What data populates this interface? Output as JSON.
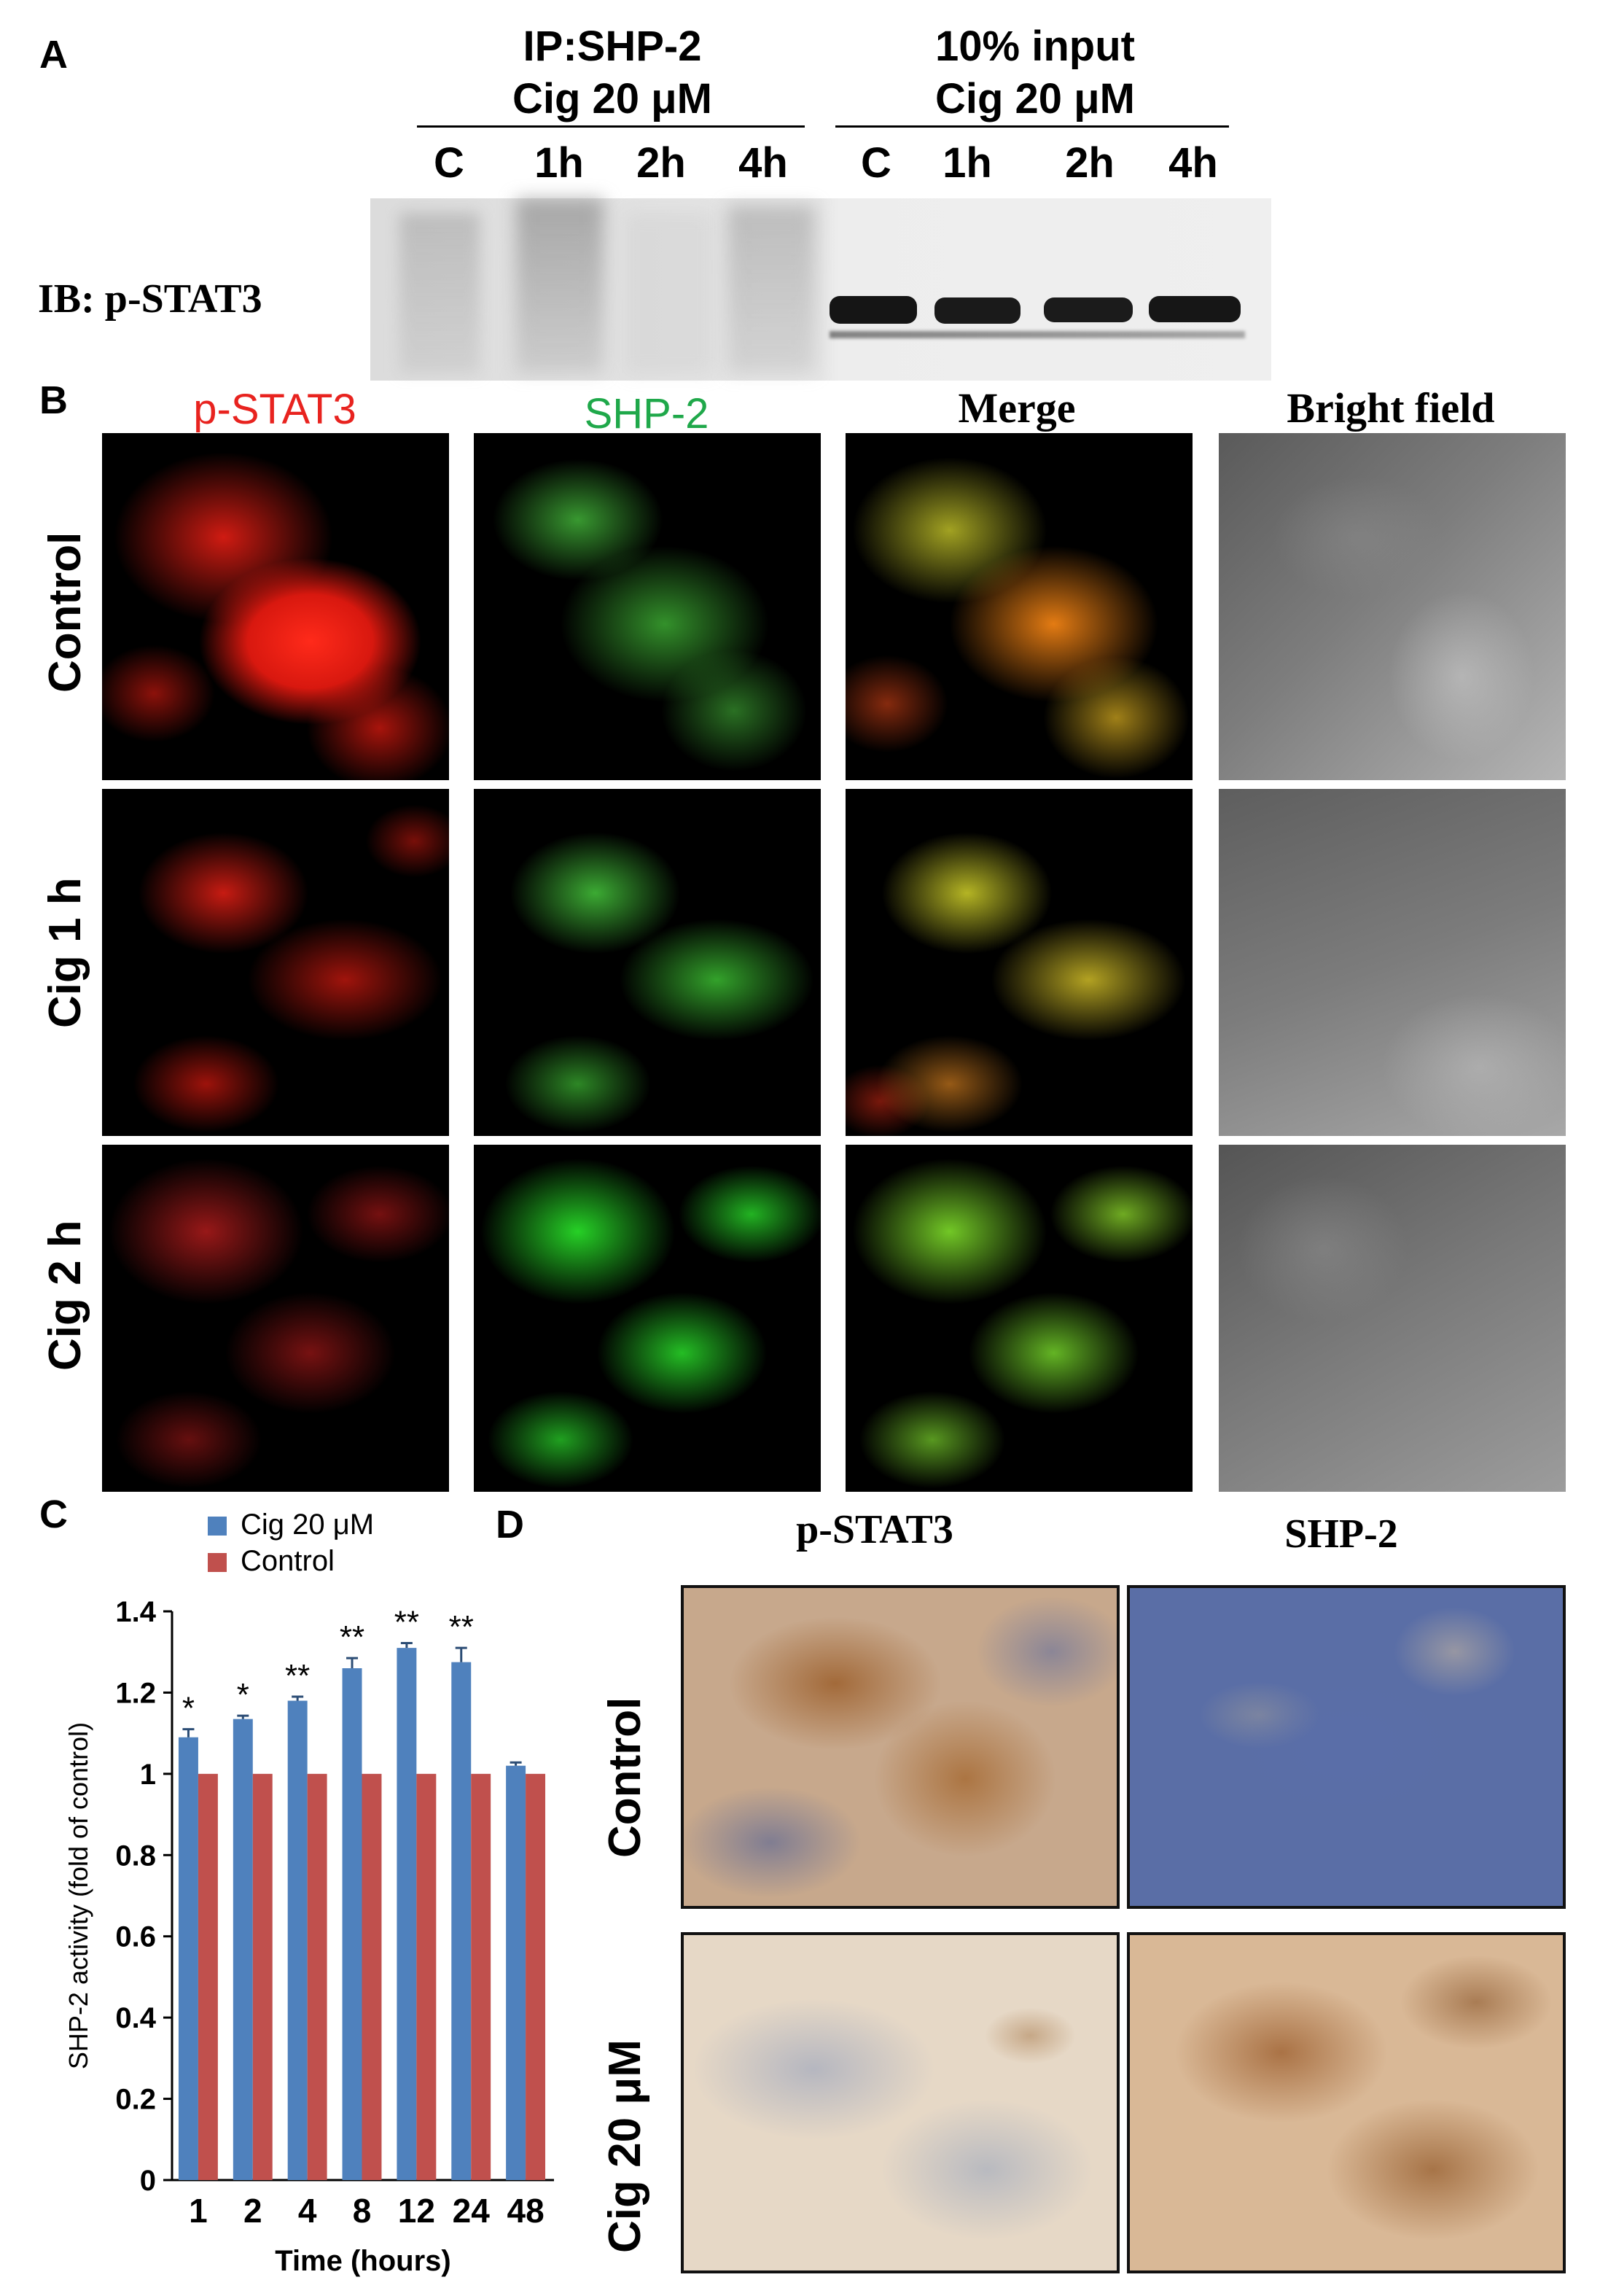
{
  "panel_a": {
    "letter": "A",
    "ip_group": {
      "line1": "IP:SHP-2",
      "line2": "Cig 20 μM",
      "lanes": [
        "C",
        "1h",
        "2h",
        "4h"
      ]
    },
    "input_group": {
      "line1": "10% input",
      "line2": "Cig 20 μM",
      "lanes": [
        "C",
        "1h",
        "2h",
        "4h"
      ]
    },
    "ib_label": "IB: p-STAT3"
  },
  "panel_b": {
    "letter": "B",
    "columns": [
      "p-STAT3",
      "SHP-2",
      "Merge",
      "Bright field"
    ],
    "column_colors": [
      "#e8231f",
      "#1fa84a",
      "#000000",
      "#000000"
    ],
    "rows": [
      "Control",
      "Cig 1 h",
      "Cig 2 h"
    ]
  },
  "panel_c": {
    "letter": "C",
    "significance": [
      "*",
      "*",
      "**",
      "**",
      "**",
      "**",
      ""
    ]
  },
  "panel_d": {
    "letter": "D",
    "columns": [
      "p-STAT3",
      "SHP-2"
    ],
    "rows": [
      "Control",
      "Cig 20 μM"
    ]
  },
  "chart_data": {
    "type": "bar",
    "categories": [
      "1",
      "2",
      "4",
      "8",
      "12",
      "24",
      "48"
    ],
    "series": [
      {
        "name": "Cig 20 μM",
        "values": [
          1.09,
          1.135,
          1.18,
          1.26,
          1.31,
          1.275,
          1.02
        ],
        "errors": [
          0.02,
          0.008,
          0.01,
          0.025,
          0.012,
          0.035,
          0.008
        ],
        "color": "#4f81bd"
      },
      {
        "name": "Control",
        "values": [
          1,
          1,
          1,
          1,
          1,
          1,
          1
        ],
        "color": "#c0504d"
      }
    ],
    "xlabel": "Time (hours)",
    "ylabel": "SHP-2 activity (fold of control)",
    "ylim": [
      0,
      1.4
    ],
    "yticks": [
      "0",
      "0.2",
      "0.4",
      "0.6",
      "0.8",
      "1",
      "1.2",
      "1.4"
    ],
    "legend": "top-left",
    "grid": false
  }
}
